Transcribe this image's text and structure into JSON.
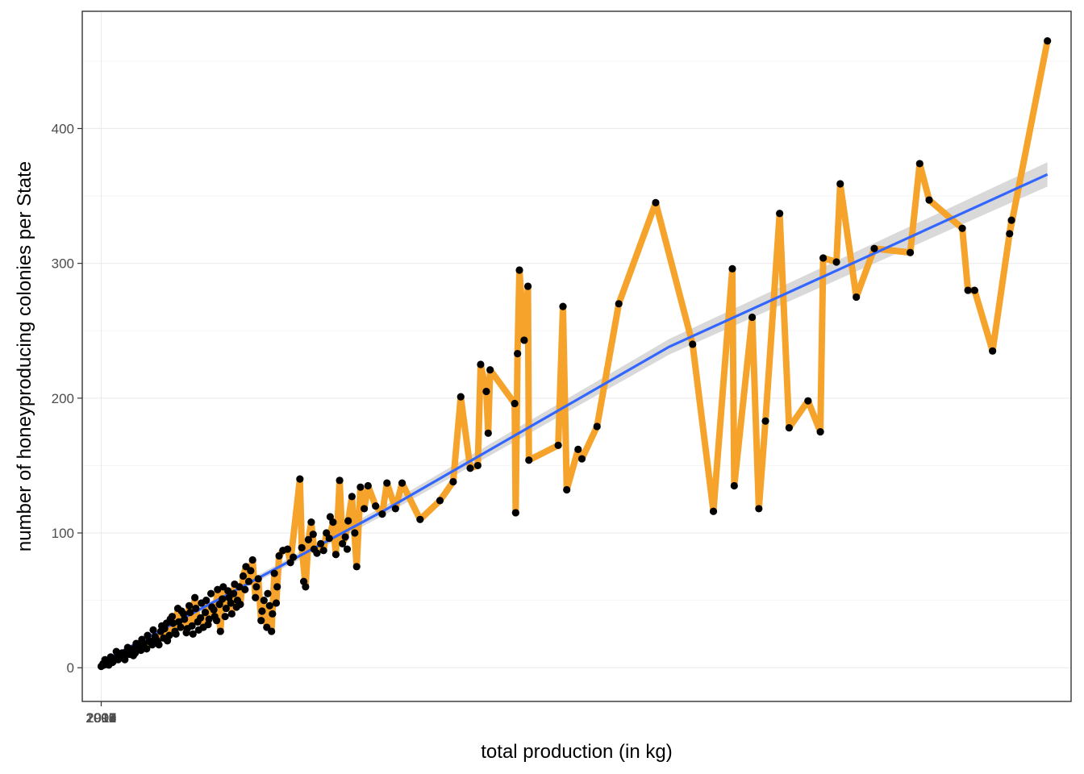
{
  "chart_data": {
    "type": "scatter",
    "title": "",
    "xlabel": "total production (in kg)",
    "ylabel": "number of honeyproducing colonies per State",
    "ylim": [
      -25,
      487
    ],
    "y_ticks": [
      "0",
      "100",
      "200",
      "300",
      "400"
    ],
    "y_tick_values": [
      0,
      100,
      200,
      300,
      400
    ],
    "x_tick_labels": [
      "1998",
      "1999",
      "2000",
      "2001",
      "2002",
      "2003",
      "2004",
      "2005",
      "2006",
      "2007",
      "2008",
      "2009",
      "2010",
      "2011",
      "2012"
    ],
    "x_note": "x values are shown as fractions of the full x-axis range (x tick labels are overlapping year values)",
    "xlim": [
      -0.02,
      1.025
    ],
    "grid": true,
    "legend": "none",
    "colors": {
      "path": "#f5a32a",
      "points": "#000000",
      "smooth": "#3366ff",
      "ribbon": "#cccccc",
      "grid": "#ebebeb",
      "border": "#333333"
    },
    "series": [
      {
        "name": "",
        "kind": "path",
        "points": [
          [
            0.0,
            1
          ],
          [
            0.003,
            2
          ],
          [
            0.006,
            3
          ],
          [
            0.009,
            5
          ],
          [
            0.012,
            4
          ],
          [
            0.015,
            7
          ],
          [
            0.018,
            6
          ],
          [
            0.021,
            9
          ],
          [
            0.024,
            8
          ],
          [
            0.027,
            12
          ],
          [
            0.03,
            10
          ],
          [
            0.033,
            14
          ],
          [
            0.036,
            11
          ],
          [
            0.039,
            16
          ],
          [
            0.042,
            13
          ],
          [
            0.045,
            18
          ],
          [
            0.048,
            14
          ],
          [
            0.051,
            20
          ],
          [
            0.054,
            17
          ],
          [
            0.057,
            23
          ],
          [
            0.06,
            19
          ],
          [
            0.063,
            27
          ],
          [
            0.066,
            22
          ],
          [
            0.069,
            33
          ],
          [
            0.072,
            24
          ],
          [
            0.075,
            38
          ],
          [
            0.078,
            27
          ],
          [
            0.081,
            44
          ],
          [
            0.084,
            30
          ],
          [
            0.087,
            40
          ],
          [
            0.09,
            26
          ],
          [
            0.093,
            46
          ],
          [
            0.096,
            31
          ],
          [
            0.099,
            52
          ],
          [
            0.102,
            34
          ],
          [
            0.105,
            37
          ],
          [
            0.108,
            30
          ],
          [
            0.111,
            50
          ],
          [
            0.114,
            36
          ],
          [
            0.117,
            45
          ],
          [
            0.12,
            38
          ],
          [
            0.123,
            58
          ],
          [
            0.126,
            27
          ],
          [
            0.129,
            60
          ],
          [
            0.132,
            44
          ],
          [
            0.135,
            52
          ],
          [
            0.138,
            40
          ],
          [
            0.141,
            62
          ],
          [
            0.144,
            50
          ],
          [
            0.147,
            47
          ],
          [
            0.15,
            68
          ],
          [
            0.153,
            75
          ],
          [
            0.156,
            64
          ],
          [
            0.16,
            80
          ],
          [
            0.163,
            52
          ],
          [
            0.166,
            66
          ],
          [
            0.169,
            35
          ],
          [
            0.172,
            50
          ],
          [
            0.175,
            30
          ],
          [
            0.178,
            46
          ],
          [
            0.18,
            27
          ],
          [
            0.183,
            70
          ],
          [
            0.185,
            48
          ],
          [
            0.188,
            83
          ],
          [
            0.192,
            87
          ],
          [
            0.197,
            88
          ],
          [
            0.2,
            78
          ],
          [
            0.21,
            140
          ],
          [
            0.212,
            89
          ],
          [
            0.216,
            60
          ],
          [
            0.219,
            95
          ],
          [
            0.222,
            108
          ],
          [
            0.225,
            88
          ],
          [
            0.228,
            85
          ],
          [
            0.232,
            92
          ],
          [
            0.235,
            87
          ],
          [
            0.238,
            100
          ],
          [
            0.241,
            96
          ],
          [
            0.245,
            108
          ],
          [
            0.248,
            84
          ],
          [
            0.252,
            139
          ],
          [
            0.255,
            92
          ],
          [
            0.258,
            97
          ],
          [
            0.261,
            109
          ],
          [
            0.265,
            127
          ],
          [
            0.27,
            75
          ],
          [
            0.274,
            134
          ],
          [
            0.278,
            118
          ],
          [
            0.282,
            135
          ],
          [
            0.29,
            120
          ],
          [
            0.297,
            114
          ],
          [
            0.302,
            137
          ],
          [
            0.311,
            118
          ],
          [
            0.318,
            137
          ],
          [
            0.337,
            110
          ],
          [
            0.358,
            124
          ],
          [
            0.372,
            138
          ],
          [
            0.38,
            201
          ],
          [
            0.39,
            148
          ],
          [
            0.398,
            150
          ],
          [
            0.401,
            225
          ],
          [
            0.407,
            205
          ],
          [
            0.409,
            174
          ],
          [
            0.411,
            221
          ],
          [
            0.437,
            196
          ],
          [
            0.438,
            115
          ],
          [
            0.44,
            233
          ],
          [
            0.442,
            295
          ],
          [
            0.447,
            243
          ],
          [
            0.451,
            283
          ],
          [
            0.452,
            154
          ],
          [
            0.483,
            165
          ],
          [
            0.488,
            268
          ],
          [
            0.492,
            132
          ],
          [
            0.504,
            162
          ],
          [
            0.508,
            155
          ],
          [
            0.524,
            179
          ],
          [
            0.547,
            270
          ],
          [
            0.586,
            345
          ],
          [
            0.625,
            240
          ],
          [
            0.647,
            116
          ],
          [
            0.667,
            296
          ],
          [
            0.669,
            135
          ],
          [
            0.688,
            260
          ],
          [
            0.695,
            118
          ],
          [
            0.702,
            183
          ],
          [
            0.717,
            337
          ],
          [
            0.727,
            178
          ],
          [
            0.747,
            198
          ],
          [
            0.76,
            175
          ],
          [
            0.763,
            304
          ],
          [
            0.777,
            301
          ],
          [
            0.781,
            359
          ],
          [
            0.798,
            275
          ],
          [
            0.817,
            311
          ],
          [
            0.855,
            308
          ],
          [
            0.865,
            374
          ],
          [
            0.875,
            347
          ],
          [
            0.91,
            326
          ],
          [
            0.916,
            280
          ],
          [
            0.923,
            280
          ],
          [
            0.942,
            235
          ],
          [
            0.962,
            332
          ],
          [
            0.96,
            322
          ],
          [
            1.0,
            465
          ]
        ]
      },
      {
        "name": "",
        "kind": "smooth",
        "points": [
          [
            0.0,
            4
          ],
          [
            0.3,
            117
          ],
          [
            0.6,
            238
          ],
          [
            1.0,
            366
          ]
        ],
        "ribbon_halfwidth_at_end": 8
      }
    ],
    "extra_points": [
      [
        0.002,
        3
      ],
      [
        0.004,
        6
      ],
      [
        0.008,
        2
      ],
      [
        0.01,
        8
      ],
      [
        0.013,
        5
      ],
      [
        0.016,
        12
      ],
      [
        0.019,
        9
      ],
      [
        0.022,
        11
      ],
      [
        0.025,
        6
      ],
      [
        0.028,
        15
      ],
      [
        0.031,
        13
      ],
      [
        0.034,
        9
      ],
      [
        0.037,
        18
      ],
      [
        0.04,
        17
      ],
      [
        0.043,
        21
      ],
      [
        0.046,
        15
      ],
      [
        0.049,
        24
      ],
      [
        0.052,
        19
      ],
      [
        0.055,
        28
      ],
      [
        0.058,
        21
      ],
      [
        0.061,
        17
      ],
      [
        0.064,
        31
      ],
      [
        0.067,
        29
      ],
      [
        0.07,
        20
      ],
      [
        0.073,
        36
      ],
      [
        0.076,
        33
      ],
      [
        0.079,
        25
      ],
      [
        0.082,
        34
      ],
      [
        0.085,
        42
      ],
      [
        0.088,
        36
      ],
      [
        0.091,
        29
      ],
      [
        0.094,
        41
      ],
      [
        0.097,
        25
      ],
      [
        0.1,
        44
      ],
      [
        0.103,
        28
      ],
      [
        0.106,
        48
      ],
      [
        0.11,
        41
      ],
      [
        0.113,
        32
      ],
      [
        0.116,
        55
      ],
      [
        0.119,
        43
      ],
      [
        0.122,
        35
      ],
      [
        0.125,
        47
      ],
      [
        0.128,
        51
      ],
      [
        0.131,
        38
      ],
      [
        0.134,
        57
      ],
      [
        0.137,
        48
      ],
      [
        0.14,
        55
      ],
      [
        0.143,
        45
      ],
      [
        0.146,
        60
      ],
      [
        0.152,
        58
      ],
      [
        0.158,
        72
      ],
      [
        0.164,
        60
      ],
      [
        0.17,
        42
      ],
      [
        0.176,
        55
      ],
      [
        0.181,
        40
      ],
      [
        0.186,
        60
      ],
      [
        0.203,
        82
      ],
      [
        0.214,
        64
      ],
      [
        0.224,
        99
      ],
      [
        0.242,
        112
      ],
      [
        0.26,
        88
      ],
      [
        0.268,
        100
      ]
    ]
  }
}
